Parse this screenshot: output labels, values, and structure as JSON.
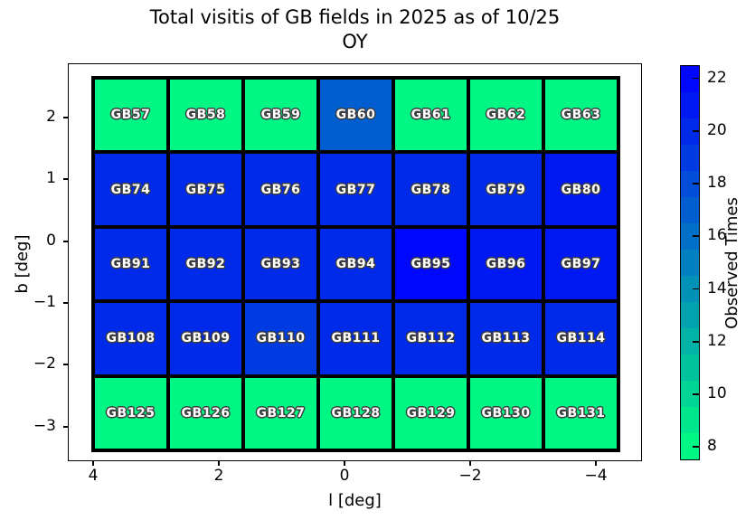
{
  "title": {
    "line1": "Total visitis of GB fields in 2025 as of 10/25",
    "line2": "OY"
  },
  "axes": {
    "xlabel": "l [deg]",
    "ylabel": "b [deg]"
  },
  "colorbar": {
    "label": "Observed Times",
    "tick_values": [
      8,
      10,
      12,
      14,
      16,
      18,
      20,
      22
    ],
    "vmin": 7.5,
    "vmax": 22.5,
    "n_bands": 15,
    "color_low": "#00ff80",
    "color_high": "#0000ff"
  },
  "chart_data": {
    "type": "heatmap",
    "title": "Total visitis of GB fields in 2025 as of 10/25",
    "subtitle": "OY",
    "xlabel": "l [deg]",
    "ylabel": "b [deg]",
    "colorbar_label": "Observed Times",
    "colormap": "winter_r (low=#00ff80 spring green, high=#0000ff blue)",
    "vmin": 7.5,
    "vmax": 22.5,
    "x_axis_inverted": true,
    "xlim": [
      4.4,
      -4.75
    ],
    "ylim": [
      -3.55,
      2.9
    ],
    "xtick_labels": [
      "4",
      "2",
      "0",
      "−2",
      "−4"
    ],
    "xtick_values": [
      4,
      2,
      0,
      -2,
      -4
    ],
    "ytick_labels": [
      "2",
      "1",
      "0",
      "−1",
      "−2",
      "−3"
    ],
    "ytick_values": [
      2,
      1,
      0,
      -1,
      -2,
      -3
    ],
    "l_centers": [
      3.6,
      2.4,
      1.2,
      0,
      -1.2,
      -2.4,
      -3.6
    ],
    "b_centers": [
      2.1,
      0.85,
      -0.4,
      -1.6,
      -2.85
    ],
    "rows": [
      {
        "labels": [
          "GB57",
          "GB58",
          "GB59",
          "GB60",
          "GB61",
          "GB62",
          "GB63"
        ],
        "values": [
          8,
          8,
          8,
          17,
          8,
          8,
          8
        ]
      },
      {
        "labels": [
          "GB74",
          "GB75",
          "GB76",
          "GB77",
          "GB78",
          "GB79",
          "GB80"
        ],
        "values": [
          20,
          20,
          20,
          20,
          20,
          20,
          21
        ]
      },
      {
        "labels": [
          "GB91",
          "GB92",
          "GB93",
          "GB94",
          "GB95",
          "GB96",
          "GB97"
        ],
        "values": [
          20,
          20,
          20,
          20,
          22,
          21,
          21
        ]
      },
      {
        "labels": [
          "GB108",
          "GB109",
          "GB110",
          "GB111",
          "GB112",
          "GB113",
          "GB114"
        ],
        "values": [
          20,
          20,
          19,
          20,
          20,
          20,
          20
        ]
      },
      {
        "labels": [
          "GB125",
          "GB126",
          "GB127",
          "GB128",
          "GB129",
          "GB130",
          "GB131"
        ],
        "values": [
          8,
          8,
          8,
          8,
          8,
          8,
          8
        ]
      }
    ]
  }
}
